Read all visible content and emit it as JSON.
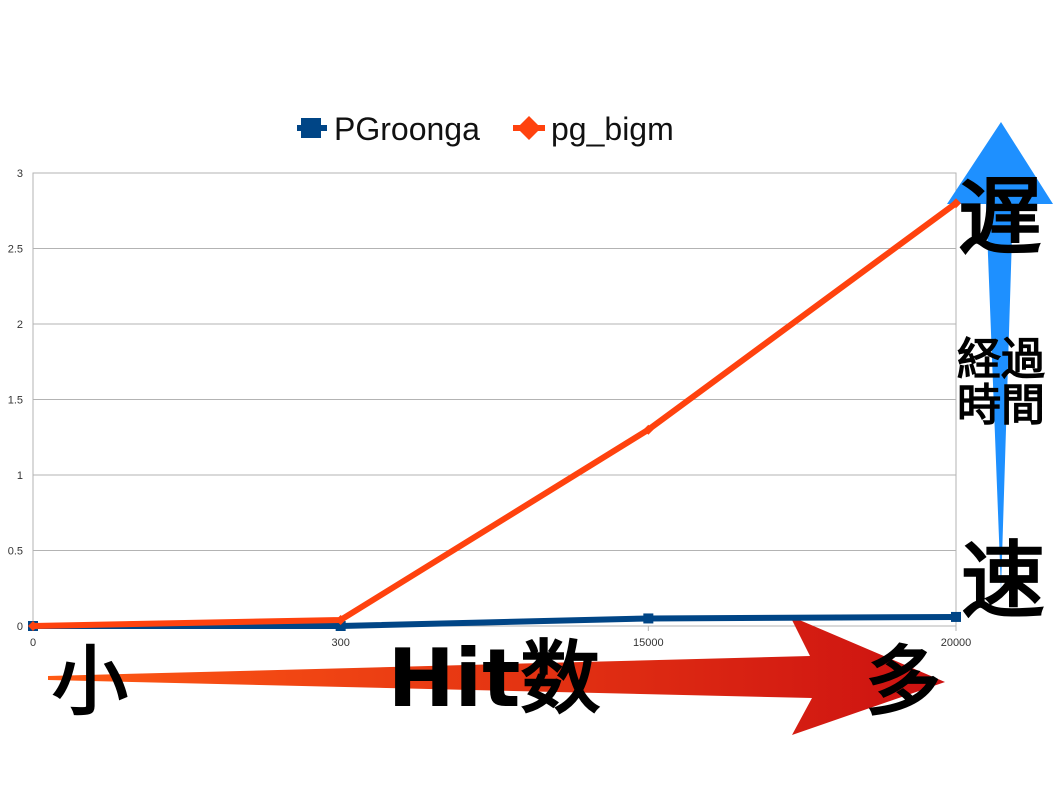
{
  "chart_data": {
    "type": "line",
    "categories": [
      "0",
      "300",
      "15000",
      "20000"
    ],
    "y_ticks": [
      "0",
      "0.5",
      "1",
      "1.5",
      "2",
      "2.5",
      "3"
    ],
    "ylim": [
      0,
      3
    ],
    "grid": true,
    "legend_position": "top",
    "series": [
      {
        "name": "PGroonga",
        "values": [
          0,
          0,
          0.05,
          0.06
        ],
        "color": "#004586",
        "marker": "square"
      },
      {
        "name": "pg_bigm",
        "values": [
          0,
          0.04,
          1.3,
          2.8
        ],
        "color": "#ff420e",
        "marker": "diamond"
      }
    ]
  },
  "annotations": {
    "y_arrow_top": "遅",
    "y_arrow_label_line1": "経過",
    "y_arrow_label_line2": "時間",
    "y_arrow_bottom": "速",
    "x_arrow_left": "小",
    "x_arrow_label": "Hit数",
    "x_arrow_right": "多",
    "x_arrow_color_start": "#ff5a14",
    "x_arrow_color_end": "#cc1111",
    "y_arrow_color": "#1e90ff"
  }
}
